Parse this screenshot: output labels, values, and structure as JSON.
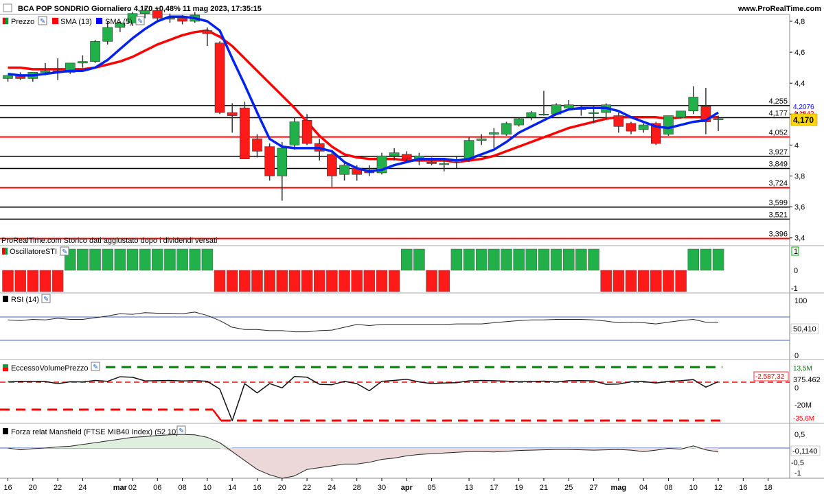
{
  "header": {
    "title": "BCA POP SONDRIO Giornaliero 4,170 +0,48% 11 mag 2023, 17:35:15",
    "site": "www.ProRealTime.com"
  },
  "price_panel": {
    "legend": [
      "Prezzo",
      "SMA (13)",
      "SMA (5)"
    ],
    "note": "ProRealTime.com  Storico dati aggiustato dopo i dividendi versati",
    "current_price_label": "4,170",
    "sma5_label": "4,2076",
    "sma13_label": "4,1842",
    "levels": [
      {
        "value": 4.255,
        "label": "4,255",
        "color": "#000000"
      },
      {
        "value": 4.177,
        "label": "4,177",
        "color": "#000000"
      },
      {
        "value": 4.052,
        "label": "4,052",
        "color": "#ff0000"
      },
      {
        "value": 3.927,
        "label": "3,927",
        "color": "#000000"
      },
      {
        "value": 3.849,
        "label": "3,849",
        "color": "#000000"
      },
      {
        "value": 3.724,
        "label": "3,724",
        "color": "#ff0000"
      },
      {
        "value": 3.599,
        "label": "3,599",
        "color": "#000000"
      },
      {
        "value": 3.521,
        "label": "3,521",
        "color": "#000000"
      },
      {
        "value": 3.396,
        "label": "3,396",
        "color": "#ff0000"
      }
    ],
    "yticks": [
      {
        "v": 4.8,
        "label": "4,8"
      },
      {
        "v": 4.6,
        "label": "4,6"
      },
      {
        "v": 4.4,
        "label": "4,4"
      },
      {
        "v": 4.2,
        "label": "4,2"
      },
      {
        "v": 4.0,
        "label": "4"
      },
      {
        "v": 3.8,
        "label": "3,8"
      },
      {
        "v": 3.6,
        "label": "3,6"
      },
      {
        "v": 3.4,
        "label": "3,4"
      }
    ]
  },
  "sti_panel": {
    "title": "OscillatoreSTI",
    "ticks": [
      "1",
      "0",
      "-1"
    ]
  },
  "rsi_panel": {
    "title": "RSI (14)",
    "ticks": [
      "100",
      "0"
    ],
    "value_label": "50,410"
  },
  "evp_panel": {
    "title": "EccessoVolumePrezzo",
    "ticks": [
      "0",
      "-20M"
    ],
    "upper_label": "13,5M",
    "lower_label": "-35,6M",
    "neg_label": "-2.587,32",
    "value_label": "375.462"
  },
  "mansfield_panel": {
    "title": "Forza relat Mansfield (FTSE MIB40 Index) (52 10)",
    "ticks": [
      "0,5",
      "0",
      "-0,5",
      "-1"
    ],
    "value_label": "-0,1140"
  },
  "chart_data": {
    "type": "candlestick",
    "x_labels": [
      {
        "i": 0,
        "label": "16"
      },
      {
        "i": 2,
        "label": "20"
      },
      {
        "i": 4,
        "label": "22"
      },
      {
        "i": 6,
        "label": "24"
      },
      {
        "i": 9,
        "label": "mar"
      },
      {
        "i": 10,
        "label": "02"
      },
      {
        "i": 12,
        "label": "06"
      },
      {
        "i": 14,
        "label": "08"
      },
      {
        "i": 16,
        "label": "10"
      },
      {
        "i": 18,
        "label": "14"
      },
      {
        "i": 20,
        "label": "16"
      },
      {
        "i": 22,
        "label": "20"
      },
      {
        "i": 24,
        "label": "22"
      },
      {
        "i": 26,
        "label": "24"
      },
      {
        "i": 28,
        "label": "28"
      },
      {
        "i": 30,
        "label": "30"
      },
      {
        "i": 32,
        "label": "apr"
      },
      {
        "i": 34,
        "label": "05"
      },
      {
        "i": 37,
        "label": "13"
      },
      {
        "i": 39,
        "label": "17"
      },
      {
        "i": 41,
        "label": "19"
      },
      {
        "i": 43,
        "label": "21"
      },
      {
        "i": 45,
        "label": "25"
      },
      {
        "i": 47,
        "label": "27"
      },
      {
        "i": 49,
        "label": "mag"
      },
      {
        "i": 51,
        "label": "04"
      },
      {
        "i": 53,
        "label": "08"
      },
      {
        "i": 55,
        "label": "10"
      },
      {
        "i": 57,
        "label": "12"
      },
      {
        "i": 59,
        "label": "16"
      },
      {
        "i": 61,
        "label": "18"
      }
    ],
    "candles": [
      [
        4.43,
        4.45,
        4.41,
        4.45
      ],
      [
        4.45,
        4.47,
        4.42,
        4.43
      ],
      [
        4.43,
        4.47,
        4.41,
        4.47
      ],
      [
        4.47,
        4.53,
        4.45,
        4.48
      ],
      [
        4.48,
        4.56,
        4.42,
        4.47
      ],
      [
        4.47,
        4.53,
        4.46,
        4.53
      ],
      [
        4.53,
        4.58,
        4.5,
        4.54
      ],
      [
        4.54,
        4.68,
        4.53,
        4.67
      ],
      [
        4.67,
        4.8,
        4.65,
        4.76
      ],
      [
        4.76,
        4.8,
        4.73,
        4.79
      ],
      [
        4.79,
        4.86,
        4.77,
        4.85
      ],
      [
        4.85,
        4.89,
        4.82,
        4.87
      ],
      [
        4.87,
        4.88,
        4.8,
        4.82
      ],
      [
        4.82,
        4.85,
        4.79,
        4.82
      ],
      [
        4.82,
        4.84,
        4.78,
        4.8
      ],
      [
        4.8,
        4.86,
        4.79,
        4.84
      ],
      [
        4.74,
        4.76,
        4.64,
        4.72
      ],
      [
        4.66,
        4.67,
        4.2,
        4.21
      ],
      [
        4.21,
        4.27,
        4.08,
        4.19
      ],
      [
        4.24,
        4.28,
        3.91,
        3.91
      ],
      [
        4.04,
        4.07,
        3.92,
        3.96
      ],
      [
        3.99,
        4.01,
        3.77,
        3.8
      ],
      [
        3.8,
        4.02,
        3.64,
        3.98
      ],
      [
        4.0,
        4.18,
        3.97,
        4.15
      ],
      [
        4.16,
        4.2,
        4.0,
        4.01
      ],
      [
        4.01,
        4.04,
        3.9,
        3.96
      ],
      [
        3.94,
        3.96,
        3.73,
        3.8
      ],
      [
        3.81,
        3.89,
        3.77,
        3.87
      ],
      [
        3.85,
        3.87,
        3.77,
        3.81
      ],
      [
        3.84,
        3.87,
        3.8,
        3.82
      ],
      [
        3.82,
        3.95,
        3.81,
        3.93
      ],
      [
        3.93,
        3.98,
        3.9,
        3.95
      ],
      [
        3.94,
        3.96,
        3.89,
        3.91
      ],
      [
        3.91,
        3.95,
        3.87,
        3.93
      ],
      [
        3.89,
        3.92,
        3.87,
        3.88
      ],
      [
        3.88,
        3.91,
        3.83,
        3.88
      ],
      [
        3.89,
        3.93,
        3.85,
        3.9
      ],
      [
        3.91,
        4.05,
        3.89,
        4.03
      ],
      [
        4.03,
        4.07,
        4.0,
        4.04
      ],
      [
        4.07,
        4.11,
        3.98,
        4.08
      ],
      [
        4.07,
        4.15,
        4.06,
        4.14
      ],
      [
        4.13,
        4.18,
        4.12,
        4.17
      ],
      [
        4.18,
        4.22,
        4.16,
        4.21
      ],
      [
        4.2,
        4.35,
        4.19,
        4.2
      ],
      [
        4.2,
        4.27,
        4.2,
        4.26
      ],
      [
        4.24,
        4.29,
        4.24,
        4.26
      ],
      [
        4.24,
        4.26,
        4.19,
        4.23
      ],
      [
        4.21,
        4.25,
        4.14,
        4.21
      ],
      [
        4.21,
        4.27,
        4.17,
        4.26
      ],
      [
        4.19,
        4.21,
        4.08,
        4.12
      ],
      [
        4.14,
        4.15,
        4.07,
        4.09
      ],
      [
        4.1,
        4.14,
        4.08,
        4.13
      ],
      [
        4.14,
        4.15,
        4.0,
        4.01
      ],
      [
        4.07,
        4.18,
        4.06,
        4.19
      ],
      [
        4.18,
        4.22,
        4.17,
        4.22
      ],
      [
        4.22,
        4.38,
        4.2,
        4.31
      ],
      [
        4.25,
        4.37,
        4.07,
        4.15
      ],
      [
        4.17,
        4.19,
        4.09,
        4.17
      ]
    ],
    "sma13": [
      4.5,
      4.5,
      4.49,
      4.49,
      4.49,
      4.49,
      4.49,
      4.5,
      4.52,
      4.54,
      4.57,
      4.61,
      4.65,
      4.68,
      4.71,
      4.73,
      4.74,
      4.7,
      4.64,
      4.56,
      4.48,
      4.4,
      4.32,
      4.24,
      4.15,
      4.06,
      3.99,
      3.94,
      3.92,
      3.91,
      3.91,
      3.91,
      3.9,
      3.9,
      3.9,
      3.9,
      3.89,
      3.9,
      3.91,
      3.93,
      3.96,
      3.99,
      4.02,
      4.05,
      4.08,
      4.11,
      4.13,
      4.15,
      4.17,
      4.18,
      4.18,
      4.18,
      4.18,
      4.17,
      4.18,
      4.18,
      4.18,
      4.18
    ],
    "sma5": [
      4.46,
      4.45,
      4.45,
      4.46,
      4.47,
      4.48,
      4.48,
      4.5,
      4.55,
      4.62,
      4.69,
      4.75,
      4.8,
      4.83,
      4.83,
      4.82,
      4.8,
      4.74,
      4.56,
      4.39,
      4.21,
      4.04,
      3.99,
      3.98,
      3.98,
      3.98,
      3.96,
      3.89,
      3.85,
      3.83,
      3.84,
      3.87,
      3.89,
      3.91,
      3.91,
      3.91,
      3.9,
      3.91,
      3.94,
      3.97,
      4.02,
      4.08,
      4.12,
      4.16,
      4.2,
      4.23,
      4.24,
      4.24,
      4.24,
      4.22,
      4.18,
      4.15,
      4.12,
      4.11,
      4.13,
      4.15,
      4.16,
      4.21
    ],
    "sti": [
      -1,
      -1,
      -1,
      -1,
      -1,
      1,
      1,
      1,
      1,
      1,
      1,
      1,
      1,
      1,
      1,
      1,
      1,
      -1,
      -1,
      -1,
      -1,
      -1,
      -1,
      -1,
      -1,
      -1,
      -1,
      -1,
      -1,
      -1,
      -1,
      -1,
      1,
      1,
      -1,
      -1,
      1,
      1,
      1,
      1,
      1,
      1,
      1,
      1,
      1,
      1,
      1,
      1,
      -1,
      -1,
      -1,
      -1,
      -1,
      -1,
      -1,
      1,
      1,
      1
    ],
    "rsi": [
      63,
      62,
      64,
      63,
      66,
      64,
      64,
      67,
      70,
      74,
      73,
      76,
      75,
      75,
      74,
      77,
      71,
      62,
      50,
      46,
      46,
      44,
      44,
      42,
      42,
      44,
      45,
      50,
      55,
      53,
      55,
      55,
      55,
      55,
      55,
      55,
      56,
      56,
      56,
      58,
      60,
      62,
      63,
      63,
      64,
      64,
      64,
      63,
      61,
      58,
      59,
      58,
      56,
      59,
      62,
      64,
      59,
      59
    ],
    "evp": [
      0.2,
      0.6,
      0.5,
      0.6,
      -1.1,
      0.3,
      0.2,
      1.2,
      0.6,
      3.8,
      3.4,
      0.9,
      1.0,
      1.2,
      0.8,
      1.1,
      0.6,
      -4.8,
      -27.0,
      -1.0,
      -7.5,
      -1.0,
      -4.0,
      4.0,
      3.5,
      -1.5,
      -1.8,
      0.6,
      -1.0,
      -6.0,
      0.6,
      1.2,
      2.0,
      0.2,
      -1.0,
      -0.6,
      -0.4,
      0.9,
      1.2,
      1.0,
      0.7,
      0.3,
      0.5,
      0.7,
      0.2,
      1.0,
      1.1,
      0.9,
      -1.5,
      -1.3,
      0.3,
      0.5,
      -0.6,
      0.6,
      1.0,
      1.8,
      -3.5,
      0.4
    ],
    "mansfield": [
      0.0,
      -0.05,
      -0.02,
      0.0,
      0.03,
      0.05,
      0.1,
      0.15,
      0.2,
      0.25,
      0.3,
      0.32,
      0.35,
      0.37,
      0.38,
      0.37,
      0.3,
      0.15,
      -0.1,
      -0.35,
      -0.6,
      -0.75,
      -0.85,
      -0.78,
      -0.6,
      -0.55,
      -0.5,
      -0.45,
      -0.45,
      -0.4,
      -0.32,
      -0.28,
      -0.22,
      -0.18,
      -0.16,
      -0.14,
      -0.12,
      -0.1,
      -0.1,
      -0.11,
      -0.09,
      -0.07,
      -0.06,
      -0.05,
      -0.04,
      -0.04,
      -0.05,
      -0.06,
      -0.05,
      -0.04,
      -0.06,
      -0.1,
      -0.06,
      -0.01,
      -0.03,
      0.06,
      -0.05,
      -0.11
    ]
  }
}
